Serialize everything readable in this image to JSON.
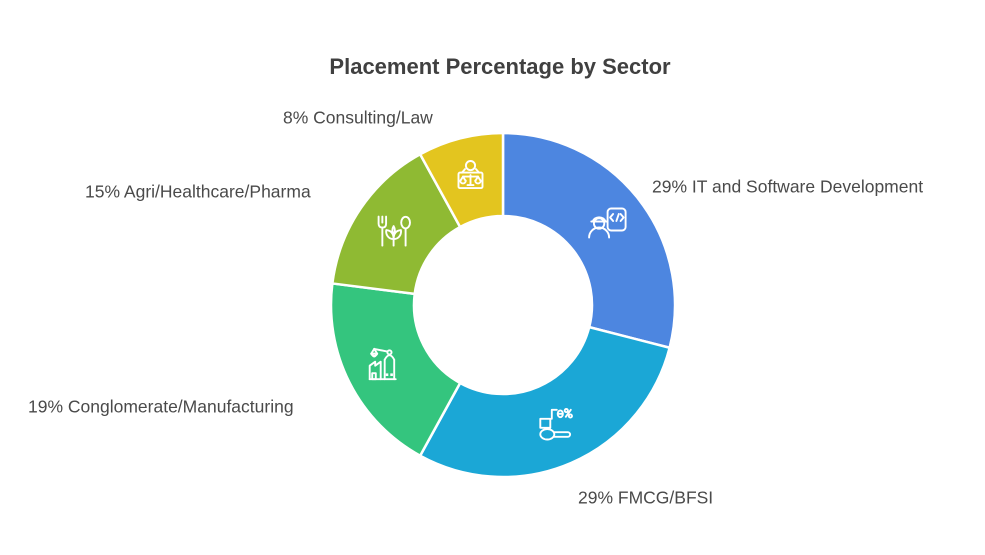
{
  "page": {
    "background": "#ffffff"
  },
  "styles": {
    "title_color": "#404040",
    "label_color": "#4a4a4a"
  },
  "chart_data": {
    "type": "pie",
    "subtype": "donut",
    "title": "Placement Percentage by Sector",
    "unit": "%",
    "legend_position": "none",
    "clockwise": true,
    "start_angle_deg": 0,
    "slice_border_color": "#ffffff",
    "icon_color": "#ffffff",
    "categories": [
      "IT and Software Development",
      "FMCG/BFSI",
      "Conglomerate/Manufacturing",
      "Agri/Healthcare/Pharma",
      "Consulting/Law"
    ],
    "values": [
      29,
      29,
      19,
      15,
      8
    ],
    "segments": [
      {
        "category": "IT and Software Development",
        "value": 29,
        "callout": "29% IT and Software Development",
        "color": "#4d86e0",
        "icon": "engineer-code-document-icon"
      },
      {
        "category": "FMCG/BFSI",
        "value": 29,
        "callout": "29% FMCG/BFSI",
        "color": "#1ba7d6",
        "icon": "spoon-goods-percent-icon"
      },
      {
        "category": "Conglomerate/Manufacturing",
        "value": 19,
        "callout": "19% Conglomerate/Manufacturing",
        "color": "#34c57e",
        "icon": "factory-crane-icon"
      },
      {
        "category": "Agri/Healthcare/Pharma",
        "value": 15,
        "callout": "15% Agri/Healthcare/Pharma",
        "color": "#8fba33",
        "icon": "fork-sprout-spoon-icon"
      },
      {
        "category": "Consulting/Law",
        "value": 8,
        "callout": "8% Consulting/Law",
        "color": "#e3c51f",
        "icon": "person-justice-scales-icon"
      }
    ]
  }
}
